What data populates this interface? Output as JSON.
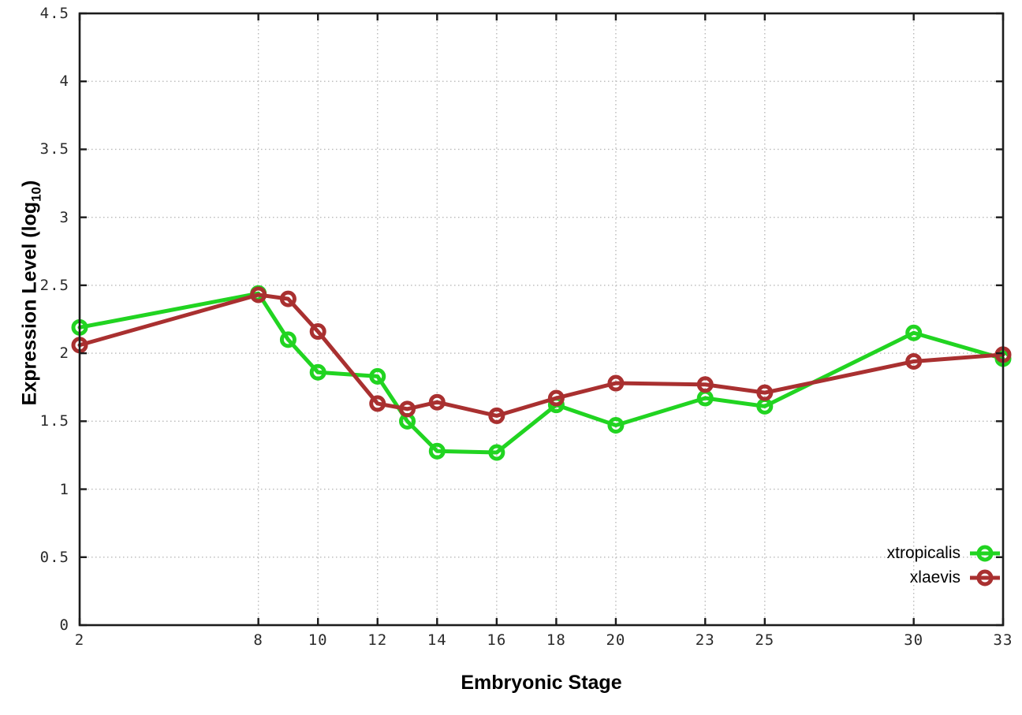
{
  "chart_data": {
    "type": "line",
    "title": "",
    "xlabel": "Embryonic Stage",
    "ylabel": "Expression Level (log10)",
    "ylabel_parts": {
      "pre": "Expression Level (log",
      "sub": "10",
      "post": ")"
    },
    "xlim": [
      2,
      33
    ],
    "ylim": [
      0,
      4.5
    ],
    "grid": true,
    "legend_position": "bottom-right",
    "marker": "open-circle",
    "x": [
      2,
      8,
      9,
      10,
      12,
      13,
      14,
      16,
      18,
      20,
      23,
      25,
      30,
      33
    ],
    "series": [
      {
        "name": "xtropicalis",
        "color": "#21d421",
        "values": [
          2.19,
          2.44,
          2.1,
          1.86,
          1.83,
          1.5,
          1.28,
          1.27,
          1.62,
          1.47,
          1.67,
          1.61,
          2.15,
          1.96
        ]
      },
      {
        "name": "xlaevis",
        "color": "#a93030",
        "values": [
          2.06,
          2.43,
          2.4,
          2.16,
          1.63,
          1.59,
          1.64,
          1.54,
          1.67,
          1.78,
          1.77,
          1.71,
          1.94,
          1.99
        ]
      }
    ],
    "x_tick_values": [
      2,
      8,
      10,
      12,
      14,
      16,
      18,
      20,
      23,
      25,
      30,
      33
    ],
    "x_tick_labels": [
      "2",
      "8",
      "10",
      "12",
      "14",
      "16",
      "18",
      "20",
      "23",
      "25",
      "30",
      "33"
    ],
    "y_tick_values": [
      0,
      0.5,
      1,
      1.5,
      2,
      2.5,
      3,
      3.5,
      4,
      4.5
    ],
    "y_tick_labels": [
      "0",
      "0.5",
      "1",
      "1.5",
      "2",
      "2.5",
      "3",
      "3.5",
      "4",
      "4.5"
    ],
    "colors": {
      "background": "#ffffff",
      "border": "#1c1c1c",
      "grid": "#b9b9b9",
      "tick_text": "#2a2a2a"
    }
  }
}
